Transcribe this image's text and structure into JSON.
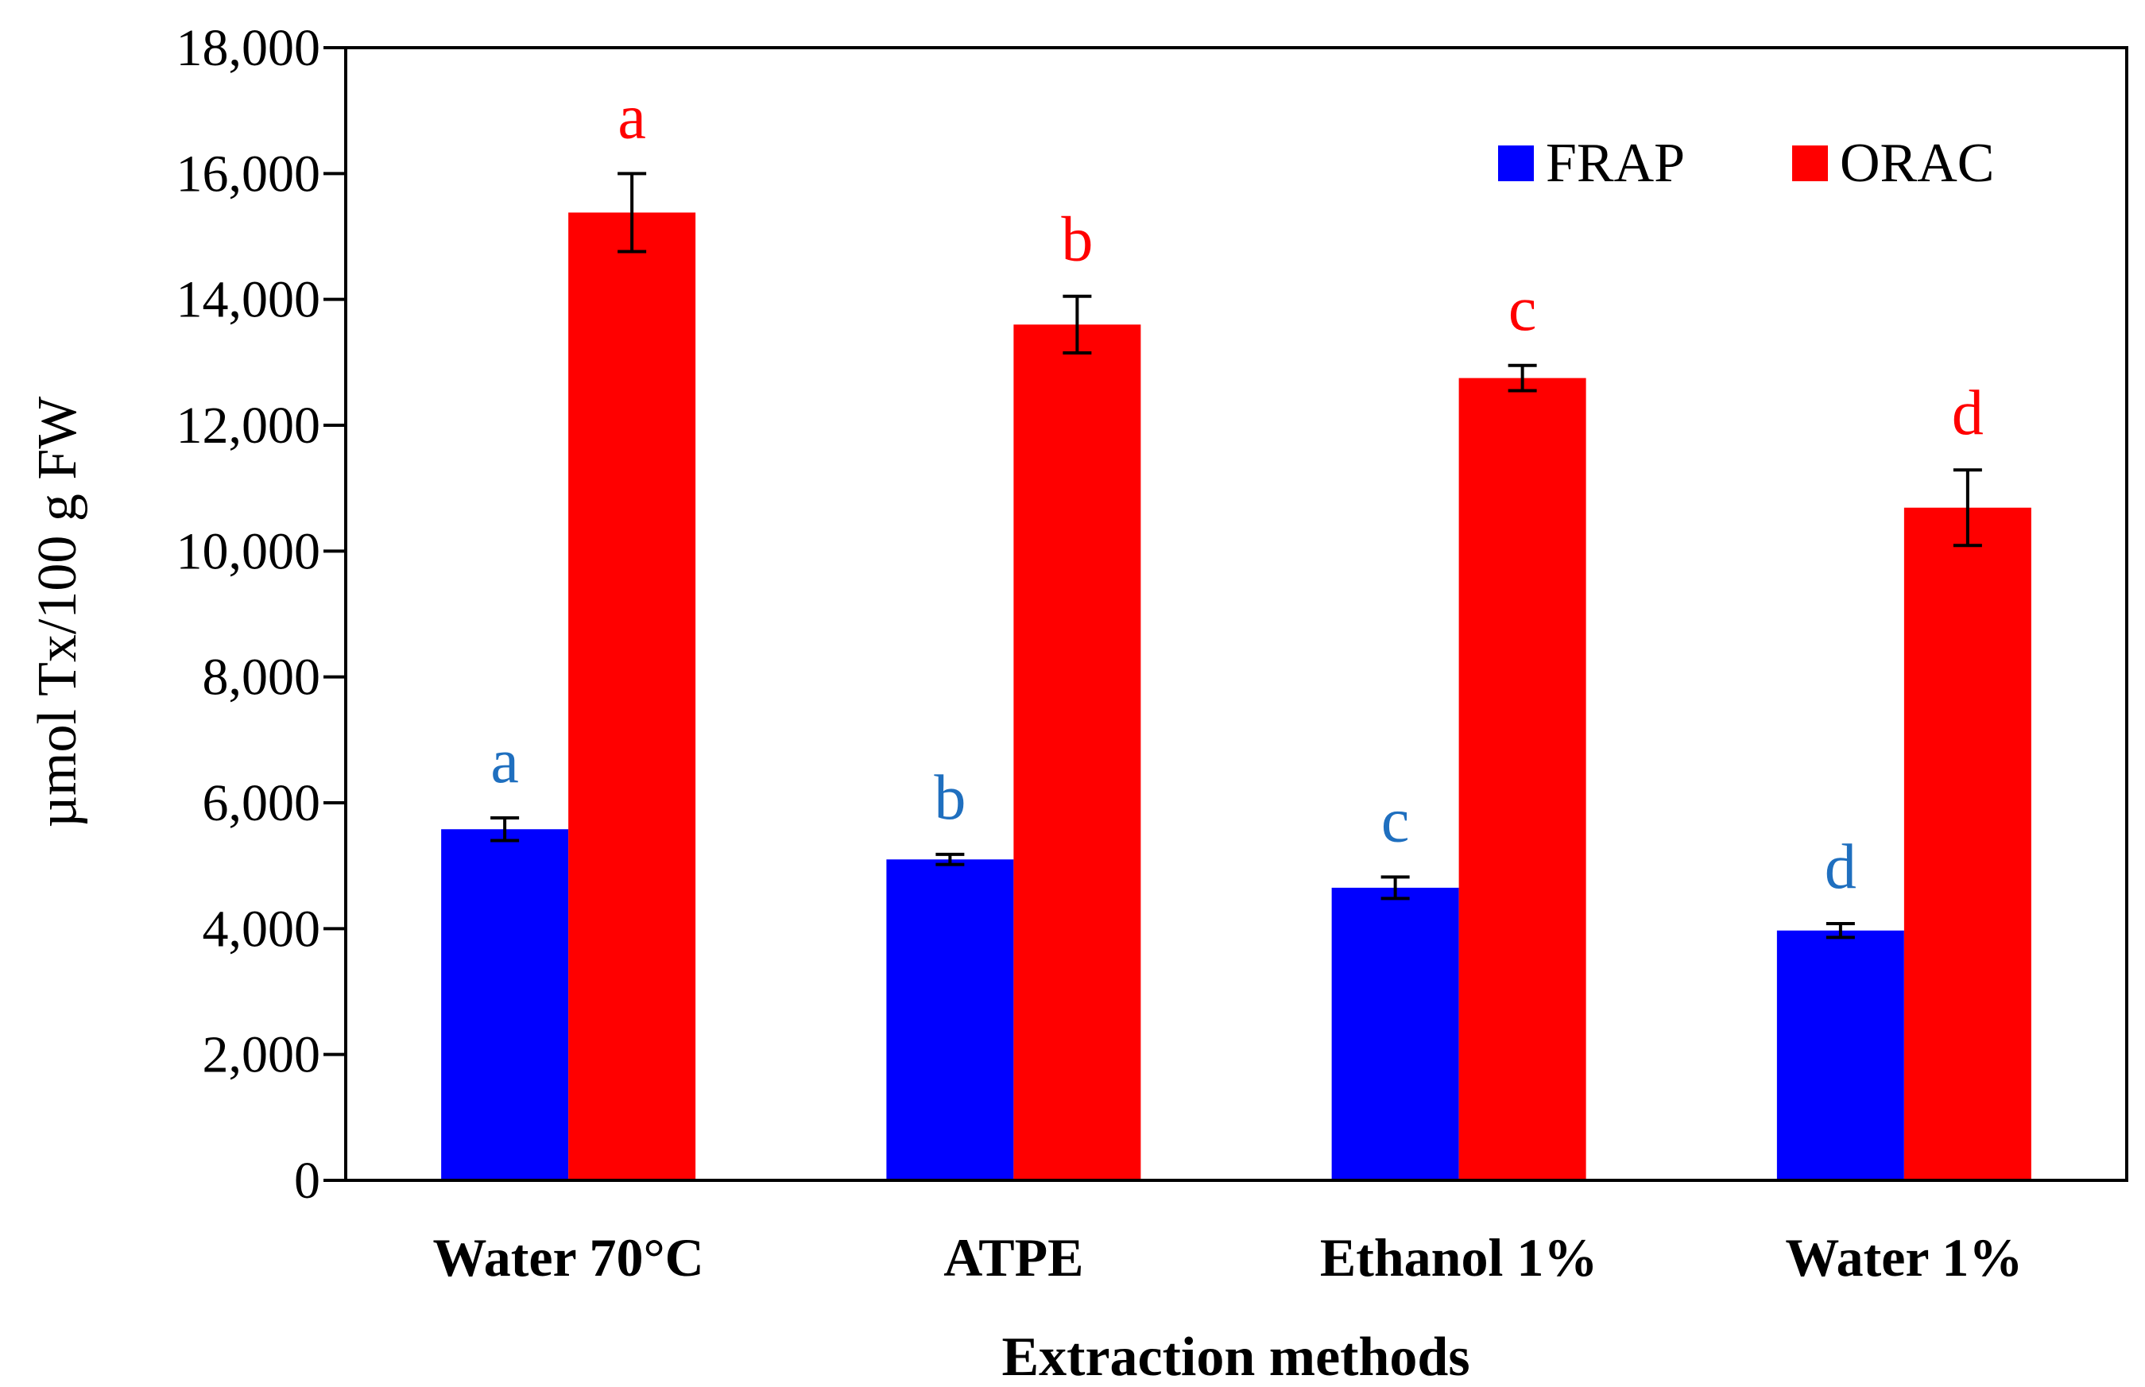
{
  "chart_data": {
    "type": "bar",
    "title": "",
    "xlabel": "Extraction methods",
    "ylabel": "µmol Tx/100 g FW",
    "ylim": [
      0,
      18000
    ],
    "yticks": [
      0,
      2000,
      4000,
      6000,
      8000,
      10000,
      12000,
      14000,
      16000,
      18000
    ],
    "ytick_labels": [
      "0",
      "2,000",
      "4,000",
      "6,000",
      "8,000",
      "10,000",
      "12,000",
      "14,000",
      "16,000",
      "18,000"
    ],
    "categories": [
      "Water 70°C",
      "ATPE",
      "Ethanol 1%",
      "Water 1%"
    ],
    "legend_position": "top-right",
    "grid": false,
    "series": [
      {
        "name": "FRAP",
        "color": "#0000ff",
        "label_color": "#1f6fbf",
        "values": [
          5580,
          5100,
          4650,
          3970
        ],
        "errors": [
          180,
          80,
          170,
          110
        ],
        "significance": [
          "a",
          "b",
          "c",
          "d"
        ]
      },
      {
        "name": "ORAC",
        "color": "#ff0000",
        "label_color": "#ff0000",
        "values": [
          15380,
          13600,
          12750,
          10690
        ],
        "errors": [
          620,
          450,
          200,
          600
        ],
        "significance": [
          "a",
          "b",
          "c",
          "d"
        ]
      }
    ]
  }
}
